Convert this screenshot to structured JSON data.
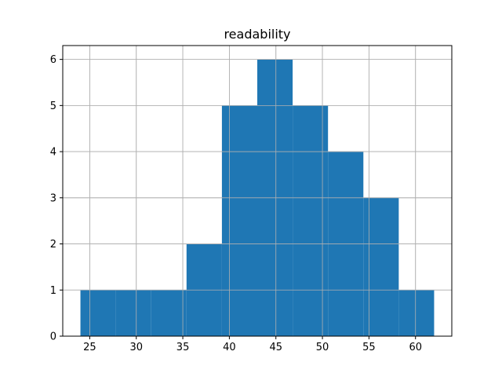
{
  "chart_data": {
    "type": "bar",
    "subtype": "histogram",
    "title": "readability",
    "xlabel": "",
    "ylabel": "",
    "bins": [
      {
        "x0": 24.0,
        "x1": 27.8,
        "count": 1
      },
      {
        "x0": 27.8,
        "x1": 31.6,
        "count": 1
      },
      {
        "x0": 31.6,
        "x1": 35.4,
        "count": 1
      },
      {
        "x0": 35.4,
        "x1": 39.2,
        "count": 2
      },
      {
        "x0": 39.2,
        "x1": 43.0,
        "count": 5
      },
      {
        "x0": 43.0,
        "x1": 46.8,
        "count": 6
      },
      {
        "x0": 46.8,
        "x1": 50.6,
        "count": 5
      },
      {
        "x0": 50.6,
        "x1": 54.4,
        "count": 4
      },
      {
        "x0": 54.4,
        "x1": 58.2,
        "count": 3
      },
      {
        "x0": 58.2,
        "x1": 62.0,
        "count": 1
      }
    ],
    "xlim": [
      22.1,
      63.9
    ],
    "ylim": [
      0,
      6.3
    ],
    "xticks": [
      "25",
      "30",
      "35",
      "40",
      "45",
      "50",
      "55",
      "60"
    ],
    "yticks": [
      "0",
      "1",
      "2",
      "3",
      "4",
      "5",
      "6"
    ],
    "grid": true,
    "bar_color": "#1f77b4",
    "grid_color": "#b0b0b0"
  }
}
